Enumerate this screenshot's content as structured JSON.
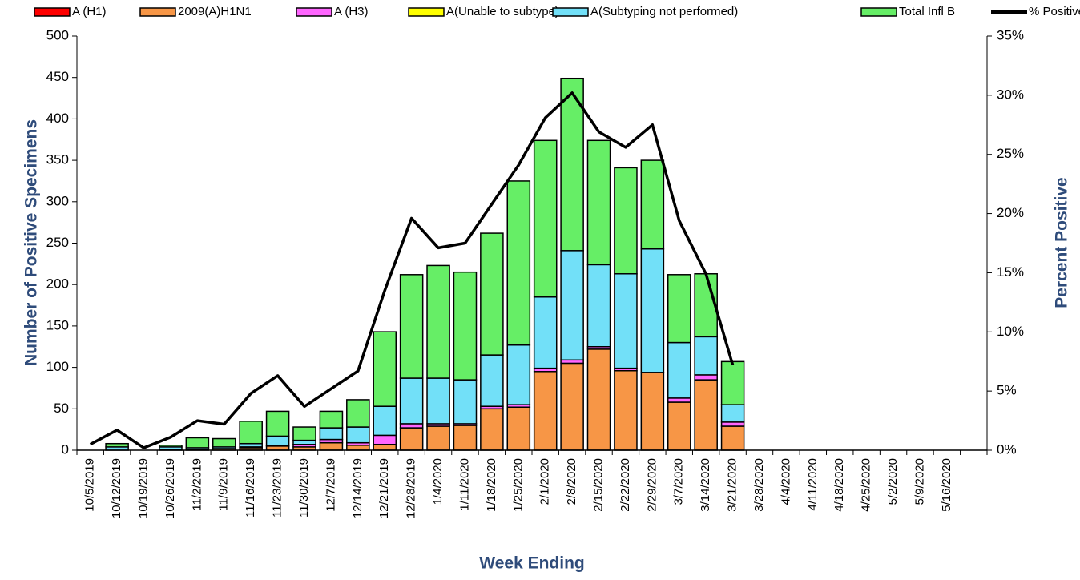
{
  "chart_data": {
    "type": "bar",
    "y_label": "Number of  Positive Specimens",
    "y2_label": "Percent Positive",
    "x_label": "Week Ending",
    "stacked": true,
    "categories": [
      "10/5/2019",
      "10/12/2019",
      "10/19/2019",
      "10/26/2019",
      "11/2/2019",
      "11/9/2019",
      "11/16/2019",
      "11/23/2019",
      "11/30/2019",
      "12/7/2019",
      "12/14/2019",
      "12/21/2019",
      "12/28/2019",
      "1/4/2020",
      "1/11/2020",
      "1/18/2020",
      "1/25/2020",
      "2/1/2020",
      "2/8/2020",
      "2/15/2020",
      "2/22/2020",
      "2/29/2020",
      "3/7/2020",
      "3/14/2020",
      "3/21/2020",
      "3/28/2020",
      "4/4/2020",
      "4/11/2020",
      "4/18/2020",
      "4/25/2020",
      "5/2/2020",
      "5/9/2020",
      "5/16/2020",
      null
    ],
    "series": [
      {
        "name": "A (H1)",
        "color": "#ff0000",
        "values": [
          0,
          0,
          0,
          0,
          0,
          0,
          0,
          0,
          0,
          0,
          0,
          0,
          0,
          0,
          0,
          0,
          0,
          0,
          0,
          0,
          0,
          0,
          0,
          0,
          0,
          0,
          0,
          0,
          0,
          0,
          0,
          0,
          0,
          0
        ]
      },
      {
        "name": "2009(A)H1N1",
        "color": "#f79646",
        "values": [
          0,
          0,
          0,
          1,
          1,
          2,
          3,
          5,
          4,
          9,
          6,
          7,
          27,
          29,
          30,
          50,
          52,
          95,
          105,
          122,
          96,
          94,
          58,
          85,
          29,
          0,
          0,
          0,
          0,
          0,
          0,
          0,
          0,
          0
        ]
      },
      {
        "name": "A (H3)",
        "color": "#ff66ff",
        "values": [
          0,
          0,
          0,
          0,
          0,
          0,
          1,
          1,
          3,
          4,
          3,
          11,
          5,
          3,
          2,
          3,
          3,
          4,
          4,
          3,
          3,
          0,
          5,
          6,
          5,
          0,
          0,
          0,
          0,
          0,
          0,
          0,
          0,
          0
        ]
      },
      {
        "name": "A(Unable to subtype)",
        "color": "#ffff00",
        "values": [
          0,
          0,
          0,
          0,
          0,
          0,
          0,
          0,
          0,
          0,
          0,
          0,
          0,
          0,
          0,
          0,
          0,
          0,
          0,
          0,
          0,
          0,
          0,
          0,
          0,
          0,
          0,
          0,
          0,
          0,
          0,
          0,
          0,
          0
        ]
      },
      {
        "name": "A(Subtyping not performed)",
        "color": "#72e0f8",
        "values": [
          0,
          4,
          0,
          3,
          2,
          2,
          4,
          11,
          5,
          14,
          19,
          35,
          55,
          55,
          53,
          62,
          72,
          86,
          132,
          99,
          114,
          149,
          67,
          46,
          21,
          0,
          0,
          0,
          0,
          0,
          0,
          0,
          0,
          0
        ]
      },
      {
        "name": "Total Infl B",
        "color": "#66ee66",
        "values": [
          0,
          4,
          0,
          2,
          12,
          10,
          27,
          30,
          16,
          20,
          33,
          90,
          125,
          136,
          130,
          147,
          198,
          189,
          208,
          150,
          128,
          107,
          82,
          76,
          52,
          0,
          0,
          0,
          0,
          0,
          0,
          0,
          0,
          0
        ]
      },
      {
        "name": "% Positive",
        "type": "line",
        "axis": "y2",
        "color": "#000000",
        "values": [
          0.5,
          1.7,
          0.2,
          1.1,
          2.5,
          2.2,
          4.8,
          6.3,
          3.7,
          5.2,
          6.7,
          13.5,
          19.6,
          17.1,
          17.5,
          20.8,
          24.1,
          28.1,
          30.2,
          26.9,
          25.6,
          27.5,
          19.4,
          14.9,
          7.2,
          null,
          null,
          null,
          null,
          null,
          null,
          null,
          null,
          null
        ]
      }
    ],
    "ylim": [
      0,
      500
    ],
    "yticks": [
      0,
      50,
      100,
      150,
      200,
      250,
      300,
      350,
      400,
      450,
      500
    ],
    "y2lim": [
      0,
      35
    ],
    "y2ticks": [
      {
        "value": 0,
        "label": "0%"
      },
      {
        "value": 5,
        "label": "5%"
      },
      {
        "value": 10,
        "label": "10%"
      },
      {
        "value": 15,
        "label": "15%"
      },
      {
        "value": 20,
        "label": "20%"
      },
      {
        "value": 25,
        "label": "25%"
      },
      {
        "value": 30,
        "label": "30%"
      },
      {
        "value": 35,
        "label": "35%"
      }
    ],
    "legend": "top"
  }
}
